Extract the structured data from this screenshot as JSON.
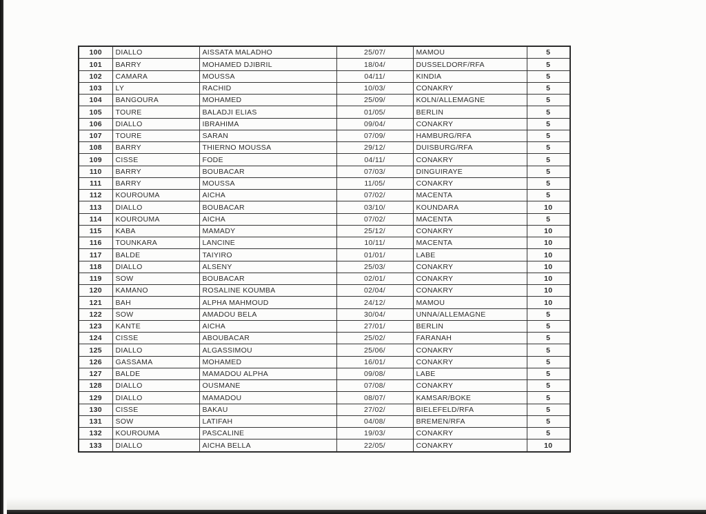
{
  "table": {
    "rows": [
      {
        "num": "100",
        "surname": "DIALLO",
        "given_name": "AISSATA MALADHO",
        "date": "25/07/",
        "place": "MAMOU",
        "score": "5"
      },
      {
        "num": "101",
        "surname": "BARRY",
        "given_name": "MOHAMED DJIBRIL",
        "date": "18/04/",
        "place": "DUSSELDORF/RFA",
        "score": "5"
      },
      {
        "num": "102",
        "surname": "CAMARA",
        "given_name": "MOUSSA",
        "date": "04/11/",
        "place": "KINDIA",
        "score": "5"
      },
      {
        "num": "103",
        "surname": "LY",
        "given_name": "RACHID",
        "date": "10/03/",
        "place": "CONAKRY",
        "score": "5"
      },
      {
        "num": "104",
        "surname": "BANGOURA",
        "given_name": "MOHAMED",
        "date": "25/09/",
        "place": "KOLN/ALLEMAGNE",
        "score": "5"
      },
      {
        "num": "105",
        "surname": "TOURE",
        "given_name": "BALADJI ELIAS",
        "date": "01/05/",
        "place": "BERLIN",
        "score": "5"
      },
      {
        "num": "106",
        "surname": "DIALLO",
        "given_name": "IBRAHIMA",
        "date": "09/04/",
        "place": "CONAKRY",
        "score": "5"
      },
      {
        "num": "107",
        "surname": "TOURE",
        "given_name": "SARAN",
        "date": "07/09/",
        "place": "HAMBURG/RFA",
        "score": "5"
      },
      {
        "num": "108",
        "surname": "BARRY",
        "given_name": "THIERNO MOUSSA",
        "date": "29/12/",
        "place": "DUISBURG/RFA",
        "score": "5"
      },
      {
        "num": "109",
        "surname": "CISSE",
        "given_name": "FODE",
        "date": "04/11/",
        "place": "CONAKRY",
        "score": "5"
      },
      {
        "num": "110",
        "surname": "BARRY",
        "given_name": "BOUBACAR",
        "date": "07/03/",
        "place": "DINGUIRAYE",
        "score": "5"
      },
      {
        "num": "111",
        "surname": "BARRY",
        "given_name": "MOUSSA",
        "date": "11/05/",
        "place": "CONAKRY",
        "score": "5"
      },
      {
        "num": "112",
        "surname": "KOUROUMA",
        "given_name": "AICHA",
        "date": "07/02/",
        "place": "MACENTA",
        "score": "5"
      },
      {
        "num": "113",
        "surname": "DIALLO",
        "given_name": "BOUBACAR",
        "date": "03/10/",
        "place": "KOUNDARA",
        "score": "10"
      },
      {
        "num": "114",
        "surname": "KOUROUMA",
        "given_name": "AICHA",
        "date": "07/02/",
        "place": "MACENTA",
        "score": "5"
      },
      {
        "num": "115",
        "surname": "KABA",
        "given_name": "MAMADY",
        "date": "25/12/",
        "place": "CONAKRY",
        "score": "10"
      },
      {
        "num": "116",
        "surname": "TOUNKARA",
        "given_name": "LANCINE",
        "date": "10/11/",
        "place": "MACENTA",
        "score": "10"
      },
      {
        "num": "117",
        "surname": "BALDE",
        "given_name": "TAIYIRO",
        "date": "01/01/",
        "place": "LABE",
        "score": "10"
      },
      {
        "num": "118",
        "surname": "DIALLO",
        "given_name": "ALSENY",
        "date": "25/03/",
        "place": "CONAKRY",
        "score": "10"
      },
      {
        "num": "119",
        "surname": "SOW",
        "given_name": "BOUBACAR",
        "date": "02/01/",
        "place": "CONAKRY",
        "score": "10"
      },
      {
        "num": "120",
        "surname": "KAMANO",
        "given_name": "ROSALINE KOUMBA",
        "date": "02/04/",
        "place": "CONAKRY",
        "score": "10"
      },
      {
        "num": "121",
        "surname": "BAH",
        "given_name": "ALPHA MAHMOUD",
        "date": "24/12/",
        "place": "MAMOU",
        "score": "10"
      },
      {
        "num": "122",
        "surname": "SOW",
        "given_name": "AMADOU BELA",
        "date": "30/04/",
        "place": "UNNA/ALLEMAGNE",
        "score": "5"
      },
      {
        "num": "123",
        "surname": "KANTE",
        "given_name": "AICHA",
        "date": "27/01/",
        "place": "BERLIN",
        "score": "5"
      },
      {
        "num": "124",
        "surname": "CISSE",
        "given_name": "ABOUBACAR",
        "date": "25/02/",
        "place": "FARANAH",
        "score": "5"
      },
      {
        "num": "125",
        "surname": "DIALLO",
        "given_name": "ALGASSIMOU",
        "date": "25/06/",
        "place": "CONAKRY",
        "score": "5"
      },
      {
        "num": "126",
        "surname": "GASSAMA",
        "given_name": "MOHAMED",
        "date": "16/01/",
        "place": "CONAKRY",
        "score": "5"
      },
      {
        "num": "127",
        "surname": "BALDE",
        "given_name": "MAMADOU ALPHA",
        "date": "09/08/",
        "place": "LABE",
        "score": "5"
      },
      {
        "num": "128",
        "surname": "DIALLO",
        "given_name": "OUSMANE",
        "date": "07/08/",
        "place": "CONAKRY",
        "score": "5"
      },
      {
        "num": "129",
        "surname": "DIALLO",
        "given_name": "MAMADOU",
        "date": "08/07/",
        "place": "KAMSAR/BOKE",
        "score": "5"
      },
      {
        "num": "130",
        "surname": "CISSE",
        "given_name": "BAKAU",
        "date": "27/02/",
        "place": "BIELEFELD/RFA",
        "score": "5"
      },
      {
        "num": "131",
        "surname": "SOW",
        "given_name": "LATIFAH",
        "date": "04/08/",
        "place": "BREMEN/RFA",
        "score": "5"
      },
      {
        "num": "132",
        "surname": "KOUROUMA",
        "given_name": "PASCALINE",
        "date": "19/03/",
        "place": "CONAKRY",
        "score": "5"
      },
      {
        "num": "133",
        "surname": "DIALLO",
        "given_name": "AICHA BELLA",
        "date": "22/05/",
        "place": "CONAKRY",
        "score": "10"
      }
    ]
  }
}
